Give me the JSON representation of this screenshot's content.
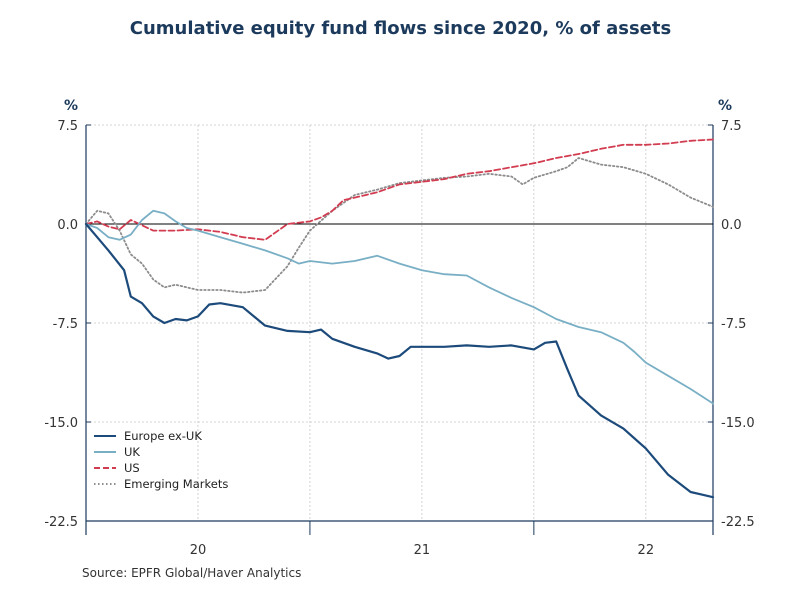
{
  "title": "Cumulative equity fund flows since 2020, % of assets",
  "source": "Source:  EPFR Global/Haver Analytics",
  "unit_left": "%",
  "unit_right": "%",
  "chart_data": {
    "type": "line",
    "title": "Cumulative equity fund flows since 2020, % of assets",
    "ylabel": "%",
    "ylim": [
      -22.5,
      7.5
    ],
    "xlim": [
      2019.5,
      2022.3
    ],
    "y_ticks": [
      "7.5",
      "0.0",
      "-7.5",
      "-15.0",
      "-22.5"
    ],
    "y_tick_values": [
      7.5,
      0,
      -7.5,
      -15,
      -22.5
    ],
    "x_ticks": [
      "20",
      "21",
      "22"
    ],
    "x_tick_values": [
      2020,
      2021,
      2022
    ],
    "zero_line": true,
    "grid": true,
    "legend_position": "bottom-left",
    "series": [
      {
        "name": "Europe ex-UK",
        "color": "#1c4a7a",
        "style": "solid",
        "x": [
          2019.5,
          2019.55,
          2019.6,
          2019.67,
          2019.7,
          2019.75,
          2019.8,
          2019.85,
          2019.9,
          2019.95,
          2020.0,
          2020.05,
          2020.1,
          2020.2,
          2020.3,
          2020.4,
          2020.5,
          2020.55,
          2020.6,
          2020.7,
          2020.8,
          2020.85,
          2020.9,
          2020.95,
          2021.0,
          2021.1,
          2021.2,
          2021.3,
          2021.4,
          2021.5,
          2021.55,
          2021.6,
          2021.65,
          2021.7,
          2021.8,
          2021.9,
          2022.0,
          2022.1,
          2022.2,
          2022.25,
          2022.3
        ],
        "y": [
          0,
          -1.0,
          -2.0,
          -3.5,
          -5.5,
          -6.0,
          -7.0,
          -7.5,
          -7.2,
          -7.3,
          -7.0,
          -6.1,
          -6.0,
          -6.3,
          -7.7,
          -8.1,
          -8.2,
          -8.0,
          -8.7,
          -9.3,
          -9.8,
          -10.2,
          -10.0,
          -9.3,
          -9.3,
          -9.3,
          -9.2,
          -9.3,
          -9.2,
          -9.5,
          -9.0,
          -8.9,
          -11.0,
          -13.0,
          -14.5,
          -15.5,
          -17.0,
          -19.0,
          -20.3,
          -20.5,
          -20.7
        ]
      },
      {
        "name": "UK",
        "color": "#79afc5",
        "style": "solid",
        "x": [
          2019.5,
          2019.55,
          2019.6,
          2019.65,
          2019.7,
          2019.75,
          2019.8,
          2019.85,
          2019.9,
          2019.95,
          2020.0,
          2020.1,
          2020.2,
          2020.3,
          2020.4,
          2020.45,
          2020.5,
          2020.6,
          2020.7,
          2020.8,
          2020.9,
          2021.0,
          2021.1,
          2021.2,
          2021.3,
          2021.4,
          2021.5,
          2021.6,
          2021.7,
          2021.8,
          2021.9,
          2021.95,
          2022.0,
          2022.1,
          2022.2,
          2022.3
        ],
        "y": [
          0,
          -0.3,
          -1.0,
          -1.2,
          -0.8,
          0.3,
          1.0,
          0.8,
          0.2,
          -0.3,
          -0.5,
          -1.0,
          -1.5,
          -2.0,
          -2.6,
          -3.0,
          -2.8,
          -3.0,
          -2.8,
          -2.4,
          -3.0,
          -3.5,
          -3.8,
          -3.9,
          -4.8,
          -5.6,
          -6.3,
          -7.2,
          -7.8,
          -8.2,
          -9.0,
          -9.7,
          -10.5,
          -11.5,
          -12.5,
          -13.6
        ]
      },
      {
        "name": "US",
        "color": "#d23c50",
        "style": "dashed",
        "x": [
          2019.5,
          2019.55,
          2019.6,
          2019.65,
          2019.7,
          2019.8,
          2019.9,
          2020.0,
          2020.1,
          2020.2,
          2020.3,
          2020.4,
          2020.5,
          2020.55,
          2020.6,
          2020.65,
          2020.7,
          2020.8,
          2020.9,
          2021.0,
          2021.1,
          2021.2,
          2021.3,
          2021.4,
          2021.5,
          2021.6,
          2021.7,
          2021.8,
          2021.9,
          2022.0,
          2022.1,
          2022.2,
          2022.3
        ],
        "y": [
          0,
          0.2,
          -0.2,
          -0.4,
          0.3,
          -0.5,
          -0.5,
          -0.4,
          -0.6,
          -1.0,
          -1.2,
          0.0,
          0.2,
          0.5,
          1.0,
          1.8,
          2.0,
          2.4,
          3.0,
          3.2,
          3.4,
          3.8,
          4.0,
          4.3,
          4.6,
          5.0,
          5.3,
          5.7,
          6.0,
          6.0,
          6.1,
          6.3,
          6.4
        ]
      },
      {
        "name": "Emerging Markets",
        "color": "#8c8c8c",
        "style": "dotted",
        "x": [
          2019.5,
          2019.55,
          2019.6,
          2019.65,
          2019.7,
          2019.75,
          2019.8,
          2019.85,
          2019.9,
          2020.0,
          2020.1,
          2020.2,
          2020.3,
          2020.4,
          2020.45,
          2020.5,
          2020.6,
          2020.7,
          2020.8,
          2020.9,
          2021.0,
          2021.1,
          2021.2,
          2021.3,
          2021.4,
          2021.45,
          2021.5,
          2021.6,
          2021.65,
          2021.7,
          2021.8,
          2021.9,
          2022.0,
          2022.1,
          2022.2,
          2022.3
        ],
        "y": [
          0,
          1.0,
          0.8,
          -0.5,
          -2.3,
          -3.0,
          -4.2,
          -4.8,
          -4.6,
          -5.0,
          -5.0,
          -5.2,
          -5.0,
          -3.2,
          -1.8,
          -0.5,
          1.0,
          2.2,
          2.6,
          3.1,
          3.3,
          3.5,
          3.6,
          3.8,
          3.6,
          3.0,
          3.5,
          4.0,
          4.3,
          5.0,
          4.5,
          4.3,
          3.8,
          3.0,
          2.0,
          1.3
        ]
      }
    ]
  }
}
